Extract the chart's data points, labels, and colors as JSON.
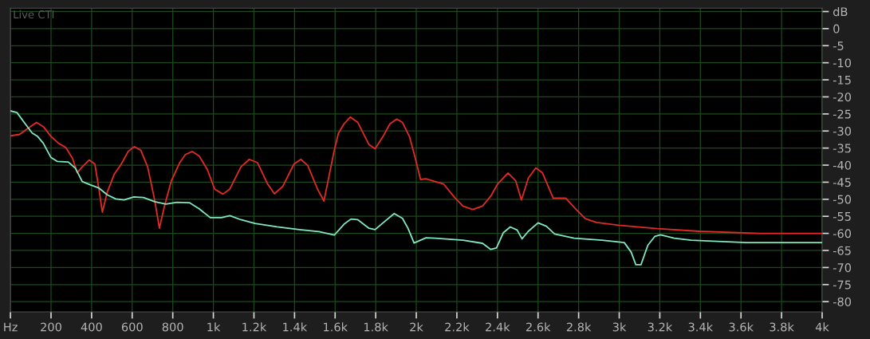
{
  "chart_data": {
    "type": "line",
    "title": "Live CTI",
    "xlim": [
      0,
      4000
    ],
    "ylim": [
      -83,
      6
    ],
    "xticks": [
      {
        "value": 0,
        "label": "Hz"
      },
      200,
      400,
      600,
      800,
      {
        "value": 1000,
        "label": "1k"
      },
      {
        "value": 1200,
        "label": "1.2k"
      },
      {
        "value": 1400,
        "label": "1.4k"
      },
      {
        "value": 1600,
        "label": "1.6k"
      },
      {
        "value": 1800,
        "label": "1.8k"
      },
      {
        "value": 2000,
        "label": "2k"
      },
      {
        "value": 2200,
        "label": "2.2k"
      },
      {
        "value": 2400,
        "label": "2.4k"
      },
      {
        "value": 2600,
        "label": "2.6k"
      },
      {
        "value": 2800,
        "label": "2.8k"
      },
      {
        "value": 3000,
        "label": "3k"
      },
      {
        "value": 3200,
        "label": "3.2k"
      },
      {
        "value": 3400,
        "label": "3.4k"
      },
      {
        "value": 3600,
        "label": "3.6k"
      },
      {
        "value": 3800,
        "label": "3.8k"
      },
      {
        "value": 4000,
        "label": "4k"
      }
    ],
    "yticks": [
      {
        "value": 5,
        "label": "dB"
      },
      0,
      -5,
      -10,
      -15,
      -20,
      -25,
      -30,
      -35,
      -40,
      -45,
      -50,
      -55,
      -60,
      -65,
      -70,
      -75,
      -80
    ],
    "grid": true,
    "marker": "none",
    "line_style": "solid",
    "series": [
      {
        "color": "#e42a24",
        "x": [
          0,
          45,
          80,
          128,
          162,
          200,
          237,
          272,
          306,
          329,
          354,
          388,
          416,
          436,
          453,
          477,
          512,
          546,
          580,
          610,
          642,
          676,
          711,
          734,
          759,
          793,
          834,
          862,
          896,
          930,
          971,
          1006,
          1047,
          1081,
          1136,
          1177,
          1218,
          1266,
          1301,
          1342,
          1397,
          1431,
          1465,
          1513,
          1545,
          1568,
          1596,
          1616,
          1644,
          1675,
          1712,
          1767,
          1797,
          1836,
          1870,
          1904,
          1932,
          1966,
          1994,
          2021,
          2048,
          2093,
          2134,
          2189,
          2230,
          2278,
          2326,
          2367,
          2401,
          2452,
          2490,
          2518,
          2552,
          2589,
          2621,
          2675,
          2737,
          2785,
          2833,
          2888,
          2997,
          3189,
          3395,
          3696,
          4000
        ],
        "values": [
          -31.4,
          -31,
          -29.5,
          -27.5,
          -28.7,
          -31.6,
          -33.6,
          -34.8,
          -38,
          -42.2,
          -40.5,
          -38.5,
          -39.7,
          -47,
          -53.8,
          -47.9,
          -42.6,
          -39.7,
          -36,
          -34.6,
          -35.6,
          -40.5,
          -50.3,
          -58.5,
          -52,
          -44.6,
          -39.3,
          -36.9,
          -36,
          -37.3,
          -41.4,
          -47,
          -48.5,
          -47,
          -40.5,
          -38.3,
          -39.3,
          -45.4,
          -48.4,
          -46.2,
          -39.7,
          -38.3,
          -40.1,
          -47,
          -50.5,
          -43.8,
          -35.6,
          -30.7,
          -27.9,
          -25.9,
          -27.5,
          -34,
          -35.2,
          -31.6,
          -27.9,
          -26.5,
          -27.5,
          -31.6,
          -37.7,
          -44.2,
          -44,
          -44.8,
          -45.5,
          -49.5,
          -52,
          -53,
          -52,
          -49.1,
          -45.5,
          -42.3,
          -44.6,
          -50.2,
          -43.8,
          -40.8,
          -42.2,
          -49.7,
          -49.7,
          -52.8,
          -55.7,
          -56.8,
          -57.6,
          -58.6,
          -59.4,
          -60,
          -60
        ]
      },
      {
        "color": "#7fe8c2",
        "x": [
          0,
          32,
          73,
          107,
          134,
          162,
          199,
          230,
          285,
          320,
          354,
          395,
          436,
          477,
          519,
          560,
          608,
          656,
          711,
          766,
          820,
          882,
          930,
          985,
          1040,
          1081,
          1136,
          1205,
          1314,
          1424,
          1520,
          1596,
          1644,
          1678,
          1712,
          1767,
          1797,
          1836,
          1891,
          1932,
          1959,
          1989,
          2048,
          2093,
          2230,
          2326,
          2367,
          2395,
          2429,
          2463,
          2497,
          2521,
          2552,
          2600,
          2641,
          2682,
          2778,
          2915,
          3025,
          3059,
          3082,
          3107,
          3141,
          3175,
          3203,
          3271,
          3354,
          3463,
          3628,
          3997
        ],
        "values": [
          -24.1,
          -24.6,
          -27.9,
          -30.6,
          -31.6,
          -33.6,
          -37.7,
          -38.9,
          -39.1,
          -40.9,
          -44.8,
          -45.8,
          -46.7,
          -48.7,
          -49.9,
          -50.2,
          -49.3,
          -49.5,
          -50.7,
          -51.4,
          -50.9,
          -51,
          -52.8,
          -55.4,
          -55.4,
          -54.8,
          -56,
          -57.1,
          -58.1,
          -58.9,
          -59.5,
          -60.5,
          -57.3,
          -55.8,
          -56,
          -58.5,
          -58.9,
          -56.9,
          -54.2,
          -55.6,
          -58.5,
          -62.8,
          -61.3,
          -61.4,
          -62,
          -62.9,
          -64.7,
          -64.3,
          -59.8,
          -58.1,
          -59,
          -61.6,
          -59.4,
          -56.9,
          -57.9,
          -60.2,
          -61.4,
          -62,
          -62.7,
          -65.5,
          -69.2,
          -69.2,
          -63.5,
          -60.9,
          -60.4,
          -61.4,
          -62,
          -62.3,
          -62.7,
          -62.7
        ]
      }
    ]
  }
}
